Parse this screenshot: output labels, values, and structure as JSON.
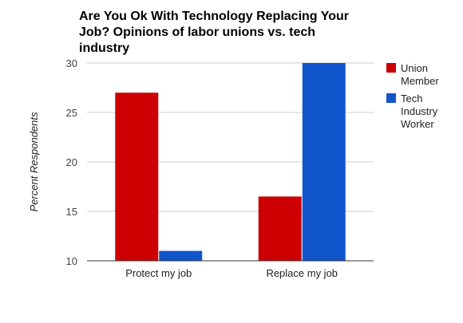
{
  "chart_data": {
    "type": "bar",
    "title_lines": [
      "Are You Ok With Technology Replacing Your",
      "Job? Opinions of labor unions vs. tech",
      "industry"
    ],
    "categories": [
      "Protect my job",
      "Replace my job"
    ],
    "series": [
      {
        "name_lines": [
          "Union",
          "Member"
        ],
        "color": "#cc0000",
        "values": [
          27,
          16.5
        ]
      },
      {
        "name_lines": [
          "Tech",
          "Industry",
          "Worker"
        ],
        "color": "#1155cc",
        "values": [
          11,
          30
        ]
      }
    ],
    "ylabel": "Percent Respondents",
    "ylim": [
      10,
      30
    ],
    "yticks": [
      "10",
      "15",
      "20",
      "25",
      "30"
    ],
    "grid": true,
    "legend_position": "right"
  }
}
